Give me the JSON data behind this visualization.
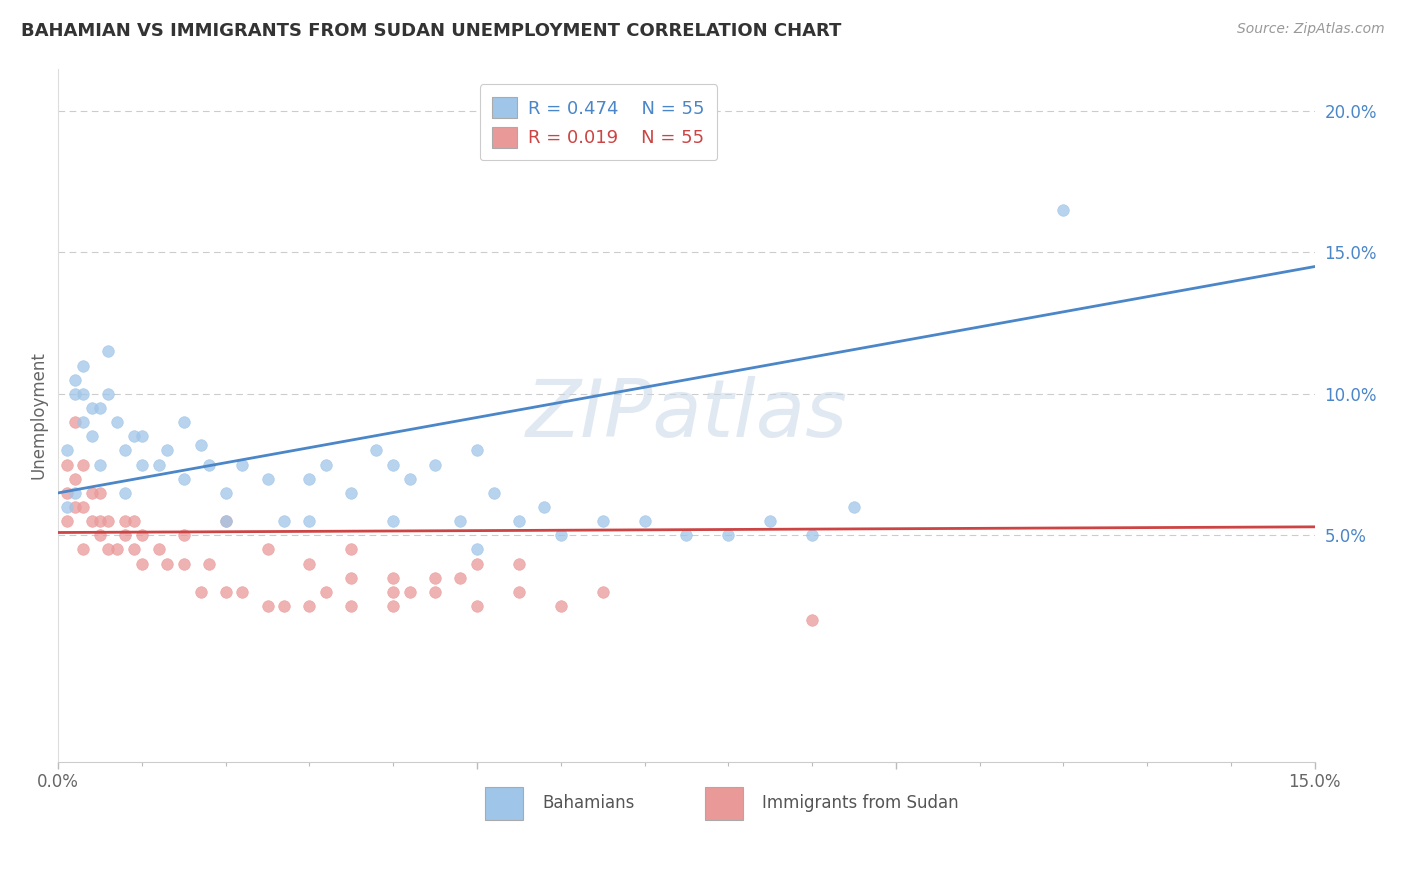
{
  "title": "BAHAMIAN VS IMMIGRANTS FROM SUDAN UNEMPLOYMENT CORRELATION CHART",
  "source": "Source: ZipAtlas.com",
  "xlabel_label": "Bahamians",
  "xlabel_label2": "Immigrants from Sudan",
  "ylabel": "Unemployment",
  "xlim": [
    0.0,
    0.15
  ],
  "ylim": [
    -0.03,
    0.215
  ],
  "r_bahamian": 0.474,
  "n_bahamian": 55,
  "r_sudan": 0.019,
  "n_sudan": 55,
  "color_blue": "#9fc5e8",
  "color_pink": "#ea9999",
  "color_blue_dark": "#4a86c8",
  "color_pink_dark": "#cc4444",
  "watermark": "ZIPatlas",
  "blue_line_x": [
    0.0,
    0.15
  ],
  "blue_line_y": [
    0.065,
    0.145
  ],
  "pink_line_x": [
    0.0,
    0.15
  ],
  "pink_line_y": [
    0.051,
    0.053
  ],
  "blue_scatter_x": [
    0.001,
    0.001,
    0.002,
    0.002,
    0.002,
    0.003,
    0.003,
    0.003,
    0.004,
    0.004,
    0.005,
    0.005,
    0.006,
    0.006,
    0.007,
    0.008,
    0.008,
    0.009,
    0.01,
    0.01,
    0.012,
    0.013,
    0.015,
    0.015,
    0.017,
    0.018,
    0.02,
    0.02,
    0.022,
    0.025,
    0.027,
    0.03,
    0.03,
    0.032,
    0.035,
    0.038,
    0.04,
    0.04,
    0.042,
    0.045,
    0.048,
    0.05,
    0.05,
    0.052,
    0.055,
    0.058,
    0.06,
    0.065,
    0.07,
    0.075,
    0.08,
    0.085,
    0.09,
    0.095,
    0.12
  ],
  "blue_scatter_y": [
    0.06,
    0.08,
    0.065,
    0.1,
    0.105,
    0.09,
    0.1,
    0.11,
    0.095,
    0.085,
    0.075,
    0.095,
    0.1,
    0.115,
    0.09,
    0.065,
    0.08,
    0.085,
    0.075,
    0.085,
    0.075,
    0.08,
    0.09,
    0.07,
    0.082,
    0.075,
    0.065,
    0.055,
    0.075,
    0.07,
    0.055,
    0.07,
    0.055,
    0.075,
    0.065,
    0.08,
    0.075,
    0.055,
    0.07,
    0.075,
    0.055,
    0.045,
    0.08,
    0.065,
    0.055,
    0.06,
    0.05,
    0.055,
    0.055,
    0.05,
    0.05,
    0.055,
    0.05,
    0.06,
    0.165
  ],
  "pink_scatter_x": [
    0.001,
    0.001,
    0.001,
    0.002,
    0.002,
    0.002,
    0.003,
    0.003,
    0.003,
    0.004,
    0.004,
    0.005,
    0.005,
    0.005,
    0.006,
    0.006,
    0.007,
    0.008,
    0.008,
    0.009,
    0.009,
    0.01,
    0.01,
    0.012,
    0.013,
    0.015,
    0.015,
    0.017,
    0.018,
    0.02,
    0.022,
    0.025,
    0.027,
    0.03,
    0.032,
    0.035,
    0.035,
    0.04,
    0.04,
    0.042,
    0.045,
    0.048,
    0.05,
    0.055,
    0.06,
    0.065,
    0.02,
    0.025,
    0.03,
    0.035,
    0.04,
    0.045,
    0.05,
    0.055,
    0.09
  ],
  "pink_scatter_y": [
    0.055,
    0.065,
    0.075,
    0.06,
    0.07,
    0.09,
    0.045,
    0.06,
    0.075,
    0.055,
    0.065,
    0.05,
    0.055,
    0.065,
    0.045,
    0.055,
    0.045,
    0.05,
    0.055,
    0.045,
    0.055,
    0.04,
    0.05,
    0.045,
    0.04,
    0.05,
    0.04,
    0.03,
    0.04,
    0.03,
    0.03,
    0.025,
    0.025,
    0.025,
    0.03,
    0.025,
    0.035,
    0.025,
    0.03,
    0.03,
    0.03,
    0.035,
    0.025,
    0.03,
    0.025,
    0.03,
    0.055,
    0.045,
    0.04,
    0.045,
    0.035,
    0.035,
    0.04,
    0.04,
    0.02
  ]
}
